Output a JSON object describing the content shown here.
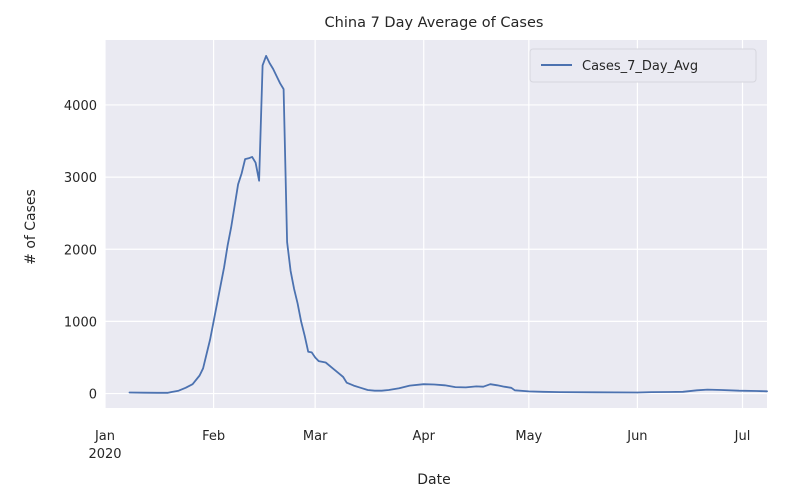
{
  "chart_data": {
    "type": "line",
    "title": "China 7 Day Average of Cases",
    "xlabel": "Date",
    "ylabel": "# of Cases",
    "ylim": [
      -200,
      4900
    ],
    "xlim": [
      "2020-01-01",
      "2020-07-08"
    ],
    "grid": true,
    "legend": "top-right",
    "line_color": "#4c72b0",
    "plot_bg": "#eaeaf2",
    "x_ticks": [
      {
        "date": "2020-01-01",
        "label": "Jan",
        "sublabel": "2020"
      },
      {
        "date": "2020-02-01",
        "label": "Feb"
      },
      {
        "date": "2020-03-01",
        "label": "Mar"
      },
      {
        "date": "2020-04-01",
        "label": "Apr"
      },
      {
        "date": "2020-05-01",
        "label": "May"
      },
      {
        "date": "2020-06-01",
        "label": "Jun"
      },
      {
        "date": "2020-07-01",
        "label": "Jul"
      }
    ],
    "y_ticks": [
      0,
      1000,
      2000,
      3000,
      4000
    ],
    "series": [
      {
        "name": "Cases_7_Day_Avg",
        "points": [
          [
            "2020-01-08",
            15
          ],
          [
            "2020-01-12",
            12
          ],
          [
            "2020-01-16",
            10
          ],
          [
            "2020-01-19",
            10
          ],
          [
            "2020-01-20",
            22
          ],
          [
            "2020-01-22",
            40
          ],
          [
            "2020-01-24",
            80
          ],
          [
            "2020-01-26",
            130
          ],
          [
            "2020-01-28",
            250
          ],
          [
            "2020-01-29",
            350
          ],
          [
            "2020-01-30",
            550
          ],
          [
            "2020-01-31",
            750
          ],
          [
            "2020-02-01",
            1000
          ],
          [
            "2020-02-02",
            1250
          ],
          [
            "2020-02-03",
            1500
          ],
          [
            "2020-02-04",
            1750
          ],
          [
            "2020-02-05",
            2050
          ],
          [
            "2020-02-06",
            2300
          ],
          [
            "2020-02-07",
            2600
          ],
          [
            "2020-02-08",
            2900
          ],
          [
            "2020-02-09",
            3050
          ],
          [
            "2020-02-10",
            3250
          ],
          [
            "2020-02-11",
            3260
          ],
          [
            "2020-02-12",
            3280
          ],
          [
            "2020-02-13",
            3200
          ],
          [
            "2020-02-14",
            2950
          ],
          [
            "2020-02-15",
            4550
          ],
          [
            "2020-02-16",
            4680
          ],
          [
            "2020-02-17",
            4580
          ],
          [
            "2020-02-18",
            4500
          ],
          [
            "2020-02-19",
            4400
          ],
          [
            "2020-02-20",
            4300
          ],
          [
            "2020-02-21",
            4220
          ],
          [
            "2020-02-22",
            2100
          ],
          [
            "2020-02-23",
            1700
          ],
          [
            "2020-02-24",
            1450
          ],
          [
            "2020-02-25",
            1250
          ],
          [
            "2020-02-26",
            1000
          ],
          [
            "2020-02-27",
            800
          ],
          [
            "2020-02-28",
            580
          ],
          [
            "2020-02-29",
            570
          ],
          [
            "2020-03-01",
            500
          ],
          [
            "2020-03-02",
            450
          ],
          [
            "2020-03-04",
            430
          ],
          [
            "2020-03-06",
            350
          ],
          [
            "2020-03-08",
            270
          ],
          [
            "2020-03-09",
            230
          ],
          [
            "2020-03-10",
            150
          ],
          [
            "2020-03-12",
            110
          ],
          [
            "2020-03-14",
            80
          ],
          [
            "2020-03-16",
            50
          ],
          [
            "2020-03-18",
            40
          ],
          [
            "2020-03-20",
            40
          ],
          [
            "2020-03-22",
            50
          ],
          [
            "2020-03-25",
            75
          ],
          [
            "2020-03-28",
            110
          ],
          [
            "2020-04-01",
            130
          ],
          [
            "2020-04-04",
            125
          ],
          [
            "2020-04-07",
            115
          ],
          [
            "2020-04-10",
            90
          ],
          [
            "2020-04-13",
            85
          ],
          [
            "2020-04-16",
            100
          ],
          [
            "2020-04-18",
            95
          ],
          [
            "2020-04-20",
            130
          ],
          [
            "2020-04-22",
            115
          ],
          [
            "2020-04-24",
            95
          ],
          [
            "2020-04-26",
            80
          ],
          [
            "2020-04-27",
            45
          ],
          [
            "2020-05-01",
            30
          ],
          [
            "2020-05-05",
            25
          ],
          [
            "2020-05-10",
            20
          ],
          [
            "2020-05-20",
            18
          ],
          [
            "2020-06-01",
            15
          ],
          [
            "2020-06-05",
            20
          ],
          [
            "2020-06-10",
            22
          ],
          [
            "2020-06-14",
            25
          ],
          [
            "2020-06-18",
            45
          ],
          [
            "2020-06-21",
            55
          ],
          [
            "2020-06-25",
            50
          ],
          [
            "2020-06-30",
            40
          ],
          [
            "2020-07-05",
            35
          ],
          [
            "2020-07-08",
            32
          ]
        ]
      }
    ]
  }
}
